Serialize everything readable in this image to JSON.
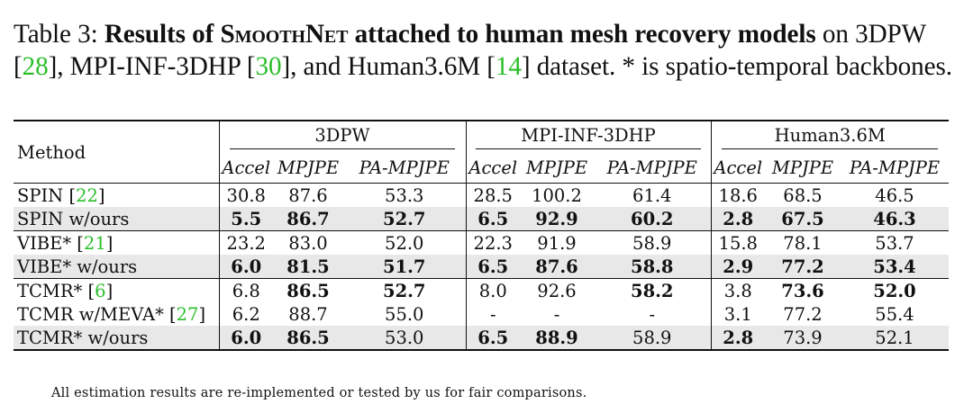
{
  "caption": {
    "label": "Table 3: ",
    "bold_part1": "Results of ",
    "smoothnet": "SmoothNet",
    "bold_part2": " attached to human mesh recovery models",
    "plain_part1": " on 3DPW [",
    "ref1": "28",
    "plain_part2": "], MPI-INF-3DHP [",
    "ref2": "30",
    "plain_part3": "], and Human3.6M [",
    "ref3": "14",
    "plain_part4": "] dataset. * is spatio-temporal backbones."
  },
  "table": {
    "method_header": "Method",
    "groups": [
      "3DPW",
      "MPI-INF-3DHP",
      "Human3.6M"
    ],
    "metrics": [
      "Accel",
      "MPJPE",
      "PA-MPJPE"
    ],
    "rows": [
      {
        "name": "SPIN [",
        "ref": "22",
        "close": "]",
        "shaded": false,
        "cells": [
          "30.8",
          "87.6",
          "53.3",
          "28.5",
          "100.2",
          "61.4",
          "18.6",
          "68.5",
          "46.5"
        ],
        "bold": [
          false,
          false,
          false,
          false,
          false,
          false,
          false,
          false,
          false
        ]
      },
      {
        "name": "SPIN w/ours",
        "ref": "",
        "close": "",
        "shaded": true,
        "cells": [
          "5.5",
          "86.7",
          "52.7",
          "6.5",
          "92.9",
          "60.2",
          "2.8",
          "67.5",
          "46.3"
        ],
        "bold": [
          true,
          true,
          true,
          true,
          true,
          true,
          true,
          true,
          true
        ]
      },
      {
        "name": "VIBE* [",
        "ref": "21",
        "close": "]",
        "shaded": false,
        "cells": [
          "23.2",
          "83.0",
          "52.0",
          "22.3",
          "91.9",
          "58.9",
          "15.8",
          "78.1",
          "53.7"
        ],
        "bold": [
          false,
          false,
          false,
          false,
          false,
          false,
          false,
          false,
          false
        ]
      },
      {
        "name": "VIBE* w/ours",
        "ref": "",
        "close": "",
        "shaded": true,
        "cells": [
          "6.0",
          "81.5",
          "51.7",
          "6.5",
          "87.6",
          "58.8",
          "2.9",
          "77.2",
          "53.4"
        ],
        "bold": [
          true,
          true,
          true,
          true,
          true,
          true,
          true,
          true,
          true
        ]
      },
      {
        "name": "TCMR* [",
        "ref": "6",
        "close": "]",
        "shaded": false,
        "cells": [
          "6.8",
          "86.5",
          "52.7",
          "8.0",
          "92.6",
          "58.2",
          "3.8",
          "73.6",
          "52.0"
        ],
        "bold": [
          false,
          true,
          true,
          false,
          false,
          true,
          false,
          true,
          true
        ]
      },
      {
        "name": "TCMR w/MEVA* [",
        "ref": "27",
        "close": "]",
        "shaded": false,
        "cells": [
          "6.2",
          "88.7",
          "55.0",
          "-",
          "-",
          "-",
          "3.1",
          "77.2",
          "55.4"
        ],
        "bold": [
          false,
          false,
          false,
          false,
          false,
          false,
          false,
          false,
          false
        ]
      },
      {
        "name": "TCMR* w/ours",
        "ref": "",
        "close": "",
        "shaded": true,
        "cells": [
          "6.0",
          "86.5",
          "53.0",
          "6.5",
          "88.9",
          "58.9",
          "2.8",
          "73.9",
          "52.1"
        ],
        "bold": [
          true,
          true,
          false,
          true,
          true,
          false,
          true,
          false,
          false
        ]
      }
    ]
  },
  "footnote": "All estimation results are re-implemented or tested by us for fair comparisons."
}
